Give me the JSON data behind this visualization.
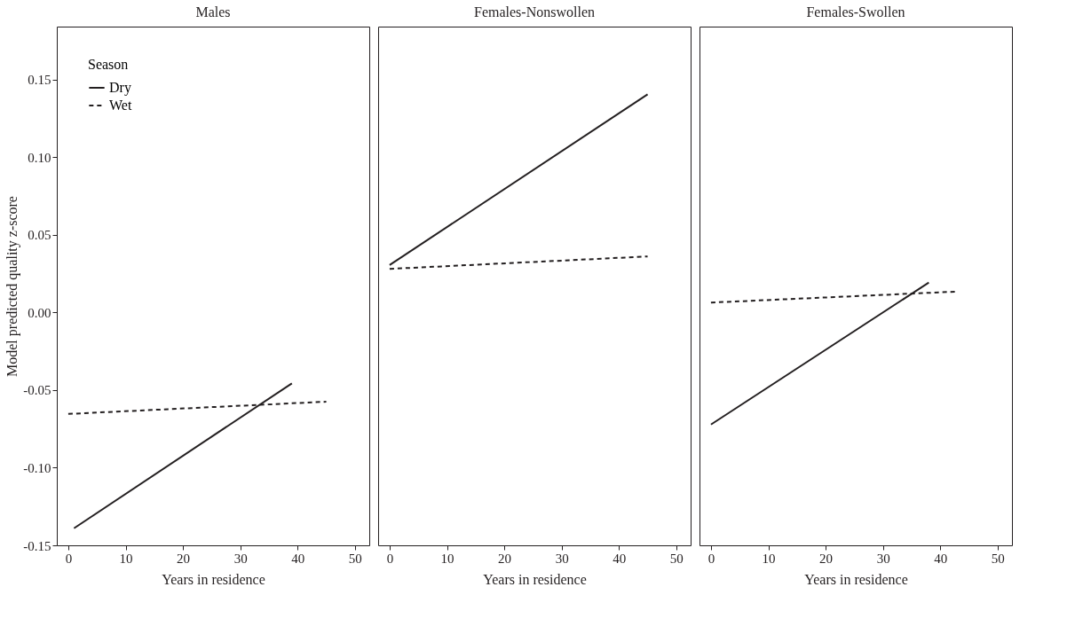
{
  "chart_data": [
    {
      "type": "line",
      "title": "Males",
      "xlabel": "Years in residence",
      "ylabel": "Model predicted quality z-score",
      "xlim": [
        -2,
        52.5
      ],
      "xticks": [
        0,
        10,
        20,
        30,
        40,
        50
      ],
      "ylim": [
        -0.15,
        0.184
      ],
      "yticks": [
        {
          "value": -0.15,
          "label": "-0.15"
        },
        {
          "value": -0.1,
          "label": "-0.10"
        },
        {
          "value": -0.05,
          "label": "-0.05"
        },
        {
          "value": 0.0,
          "label": "0.00"
        },
        {
          "value": 0.05,
          "label": "0.05"
        },
        {
          "value": 0.1,
          "label": "0.10"
        },
        {
          "value": 0.15,
          "label": "0.15"
        }
      ],
      "grid": false,
      "legend": "top left",
      "legend_title": "Season",
      "marker": "none",
      "series": [
        {
          "name": "Dry",
          "color": "#231f20",
          "line_style": "solid",
          "x": [
            1,
            39
          ],
          "values": [
            -0.139,
            -0.0457
          ]
        },
        {
          "name": "Wet",
          "color": "#231f20",
          "line_style": "dashed",
          "x": [
            0,
            45
          ],
          "values": [
            -0.0654,
            -0.0575
          ]
        }
      ]
    },
    {
      "type": "line",
      "title": "Females-Nonswollen",
      "xlabel": "Years in residence",
      "xlim": [
        -2,
        52.5
      ],
      "xticks": [
        0,
        10,
        20,
        30,
        40,
        50
      ],
      "ylim": [
        -0.15,
        0.184
      ],
      "grid": false,
      "tick_labels": "x",
      "marker": "none",
      "series": [
        {
          "color": "#231f20",
          "line_style": "solid",
          "x": [
            0,
            45
          ],
          "values": [
            0.0305,
            0.1404
          ]
        },
        {
          "color": "#231f20",
          "line_style": "dashed",
          "x": [
            0,
            45
          ],
          "values": [
            0.028,
            0.036
          ]
        }
      ]
    },
    {
      "type": "line",
      "title": "Females-Swollen",
      "xlabel": "Years in residence",
      "xlim": [
        -2,
        52.5
      ],
      "xticks": [
        0,
        10,
        20,
        30,
        40,
        50
      ],
      "ylim": [
        -0.15,
        0.184
      ],
      "grid": false,
      "tick_labels": "x",
      "marker": "none",
      "series": [
        {
          "color": "#231f20",
          "line_style": "solid",
          "x": [
            0,
            38
          ],
          "values": [
            -0.0722,
            0.0192
          ]
        },
        {
          "color": "#231f20",
          "line_style": "dashed",
          "x": [
            0,
            43
          ],
          "values": [
            0.0063,
            0.0134
          ]
        }
      ]
    }
  ]
}
